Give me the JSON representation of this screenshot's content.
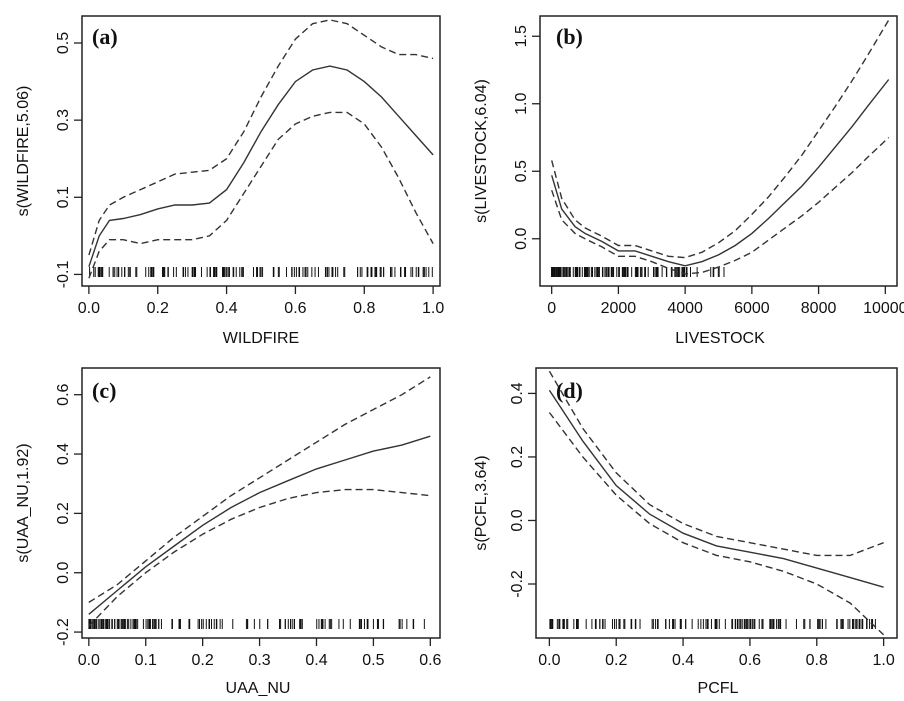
{
  "colors": {
    "line": "#333333",
    "frame": "#222222",
    "background": "#ffffff"
  },
  "chart_data": [
    {
      "type": "line",
      "panel_label": "(a)",
      "xlabel": "WILDFIRE",
      "ylabel": "s(WILDFIRE,5.06)",
      "xlim": [
        -0.02,
        1.02
      ],
      "ylim": [
        -0.13,
        0.57
      ],
      "xticks": [
        0.0,
        0.2,
        0.4,
        0.6,
        0.8,
        1.0
      ],
      "xtick_labels": [
        "0.0",
        "0.2",
        "0.4",
        "0.6",
        "0.8",
        "1.0"
      ],
      "yticks": [
        -0.1,
        0.1,
        0.3,
        0.5
      ],
      "ytick_labels": [
        "-0.1",
        "0.1",
        "0.3",
        "0.5"
      ],
      "rug": "dense",
      "series": [
        {
          "style": "solid",
          "x": [
            0.0,
            0.03,
            0.06,
            0.1,
            0.15,
            0.2,
            0.25,
            0.3,
            0.35,
            0.4,
            0.45,
            0.5,
            0.55,
            0.6,
            0.65,
            0.7,
            0.75,
            0.8,
            0.85,
            0.9,
            0.95,
            1.0
          ],
          "y": [
            -0.08,
            0.0,
            0.04,
            0.045,
            0.055,
            0.07,
            0.08,
            0.08,
            0.085,
            0.12,
            0.19,
            0.27,
            0.34,
            0.4,
            0.43,
            0.44,
            0.43,
            0.4,
            0.36,
            0.31,
            0.26,
            0.21
          ]
        },
        {
          "style": "dashed",
          "x": [
            0.0,
            0.03,
            0.06,
            0.1,
            0.15,
            0.2,
            0.25,
            0.3,
            0.35,
            0.4,
            0.45,
            0.5,
            0.55,
            0.6,
            0.65,
            0.7,
            0.75,
            0.8,
            0.85,
            0.9,
            0.95,
            1.0
          ],
          "y": [
            -0.05,
            0.04,
            0.08,
            0.1,
            0.12,
            0.14,
            0.16,
            0.165,
            0.17,
            0.2,
            0.27,
            0.36,
            0.44,
            0.51,
            0.55,
            0.56,
            0.55,
            0.52,
            0.49,
            0.47,
            0.47,
            0.46
          ]
        },
        {
          "style": "dashed",
          "x": [
            0.0,
            0.03,
            0.06,
            0.1,
            0.15,
            0.2,
            0.25,
            0.3,
            0.35,
            0.4,
            0.45,
            0.5,
            0.55,
            0.6,
            0.65,
            0.7,
            0.75,
            0.8,
            0.85,
            0.9,
            0.95,
            1.0
          ],
          "y": [
            -0.11,
            -0.04,
            -0.01,
            -0.01,
            -0.02,
            -0.01,
            -0.01,
            -0.01,
            0.0,
            0.04,
            0.11,
            0.18,
            0.25,
            0.29,
            0.31,
            0.32,
            0.32,
            0.29,
            0.23,
            0.15,
            0.06,
            -0.02
          ]
        }
      ]
    },
    {
      "type": "line",
      "panel_label": "(b)",
      "xlabel": "LIVESTOCK",
      "ylabel": "s(LIVESTOCK,6.04)",
      "xlim": [
        -350,
        10350
      ],
      "ylim": [
        -0.35,
        1.65
      ],
      "xticks": [
        0,
        2000,
        4000,
        6000,
        8000,
        10000
      ],
      "xtick_labels": [
        "0",
        "2000",
        "4000",
        "6000",
        "8000",
        "10000"
      ],
      "yticks": [
        0.0,
        0.5,
        1.0,
        1.5
      ],
      "ytick_labels": [
        "0.0",
        "0.5",
        "1.0",
        "1.5"
      ],
      "rug": "dense-low",
      "series": [
        {
          "style": "solid",
          "x": [
            0,
            300,
            700,
            1000,
            1500,
            2000,
            2500,
            3000,
            3500,
            4000,
            4500,
            5000,
            5500,
            6000,
            6500,
            7000,
            7500,
            8000,
            8500,
            9000,
            9500,
            10100
          ],
          "y": [
            0.47,
            0.22,
            0.09,
            0.04,
            -0.02,
            -0.09,
            -0.09,
            -0.13,
            -0.17,
            -0.2,
            -0.17,
            -0.12,
            -0.05,
            0.04,
            0.15,
            0.27,
            0.39,
            0.53,
            0.68,
            0.83,
            0.99,
            1.18
          ]
        },
        {
          "style": "dashed",
          "x": [
            0,
            300,
            700,
            1000,
            1500,
            2000,
            2500,
            3000,
            3500,
            4000,
            4500,
            5000,
            5500,
            6000,
            6500,
            7000,
            7500,
            8000,
            8500,
            9000,
            9500,
            10100
          ],
          "y": [
            0.58,
            0.3,
            0.14,
            0.08,
            0.02,
            -0.05,
            -0.05,
            -0.09,
            -0.13,
            -0.14,
            -0.1,
            -0.03,
            0.06,
            0.18,
            0.31,
            0.46,
            0.62,
            0.8,
            0.98,
            1.17,
            1.37,
            1.62
          ]
        },
        {
          "style": "dashed",
          "x": [
            0,
            300,
            700,
            1000,
            1500,
            2000,
            2500,
            3000,
            3500,
            4000,
            4500,
            5000,
            5500,
            6000,
            6500,
            7000,
            7500,
            8000,
            8500,
            9000,
            9500,
            10100
          ],
          "y": [
            0.36,
            0.14,
            0.04,
            0.0,
            -0.06,
            -0.13,
            -0.13,
            -0.17,
            -0.22,
            -0.26,
            -0.25,
            -0.21,
            -0.16,
            -0.1,
            -0.01,
            0.08,
            0.17,
            0.27,
            0.38,
            0.49,
            0.61,
            0.75
          ]
        }
      ]
    },
    {
      "type": "line",
      "panel_label": "(c)",
      "xlabel": "UAA_NU",
      "ylabel": "s(UAA_NU,1.92)",
      "xlim": [
        -0.012,
        0.617
      ],
      "ylim": [
        -0.22,
        0.69
      ],
      "xticks": [
        0.0,
        0.1,
        0.2,
        0.3,
        0.4,
        0.5,
        0.6
      ],
      "xtick_labels": [
        "0.0",
        "0.1",
        "0.2",
        "0.3",
        "0.4",
        "0.5",
        "0.6"
      ],
      "yticks": [
        -0.2,
        0.0,
        0.2,
        0.4,
        0.6
      ],
      "ytick_labels": [
        "-0.2",
        "0.0",
        "0.2",
        "0.4",
        "0.6"
      ],
      "rug": "dense-low",
      "series": [
        {
          "style": "solid",
          "x": [
            0.0,
            0.05,
            0.1,
            0.15,
            0.2,
            0.25,
            0.3,
            0.35,
            0.4,
            0.45,
            0.5,
            0.55,
            0.6
          ],
          "y": [
            -0.14,
            -0.06,
            0.02,
            0.09,
            0.16,
            0.22,
            0.27,
            0.31,
            0.35,
            0.38,
            0.41,
            0.43,
            0.46
          ]
        },
        {
          "style": "dashed",
          "x": [
            0.0,
            0.05,
            0.1,
            0.15,
            0.2,
            0.25,
            0.3,
            0.35,
            0.4,
            0.45,
            0.5,
            0.55,
            0.6
          ],
          "y": [
            -0.1,
            -0.04,
            0.04,
            0.12,
            0.19,
            0.26,
            0.32,
            0.38,
            0.44,
            0.5,
            0.55,
            0.6,
            0.66
          ]
        },
        {
          "style": "dashed",
          "x": [
            0.0,
            0.05,
            0.1,
            0.15,
            0.2,
            0.25,
            0.3,
            0.35,
            0.4,
            0.45,
            0.5,
            0.55,
            0.6
          ],
          "y": [
            -0.18,
            -0.08,
            0.0,
            0.07,
            0.13,
            0.18,
            0.22,
            0.25,
            0.27,
            0.28,
            0.28,
            0.27,
            0.26
          ]
        }
      ]
    },
    {
      "type": "line",
      "panel_label": "(d)",
      "xlabel": "PCFL",
      "ylabel": "s(PCFL,3.64)",
      "xlim": [
        -0.04,
        1.04
      ],
      "ylim": [
        -0.37,
        0.48
      ],
      "xticks": [
        0.0,
        0.2,
        0.4,
        0.6,
        0.8,
        1.0
      ],
      "xtick_labels": [
        "0.0",
        "0.2",
        "0.4",
        "0.6",
        "0.8",
        "1.0"
      ],
      "yticks": [
        -0.2,
        0.0,
        0.2,
        0.4
      ],
      "ytick_labels": [
        "-0.2",
        "0.0",
        "0.2",
        "0.4"
      ],
      "rug": "dense",
      "series": [
        {
          "style": "solid",
          "x": [
            0.0,
            0.05,
            0.1,
            0.15,
            0.2,
            0.3,
            0.4,
            0.5,
            0.6,
            0.7,
            0.8,
            0.9,
            1.0
          ],
          "y": [
            0.41,
            0.33,
            0.25,
            0.18,
            0.11,
            0.02,
            -0.04,
            -0.08,
            -0.1,
            -0.12,
            -0.15,
            -0.18,
            -0.21
          ]
        },
        {
          "style": "dashed",
          "x": [
            0.0,
            0.05,
            0.1,
            0.15,
            0.2,
            0.3,
            0.4,
            0.5,
            0.6,
            0.7,
            0.8,
            0.9,
            1.0
          ],
          "y": [
            0.47,
            0.38,
            0.29,
            0.22,
            0.15,
            0.05,
            -0.01,
            -0.05,
            -0.07,
            -0.09,
            -0.11,
            -0.11,
            -0.07
          ]
        },
        {
          "style": "dashed",
          "x": [
            0.0,
            0.05,
            0.1,
            0.15,
            0.2,
            0.3,
            0.4,
            0.5,
            0.6,
            0.7,
            0.8,
            0.9,
            1.0
          ],
          "y": [
            0.34,
            0.27,
            0.2,
            0.14,
            0.08,
            -0.01,
            -0.07,
            -0.11,
            -0.13,
            -0.16,
            -0.2,
            -0.26,
            -0.36
          ]
        }
      ]
    }
  ]
}
